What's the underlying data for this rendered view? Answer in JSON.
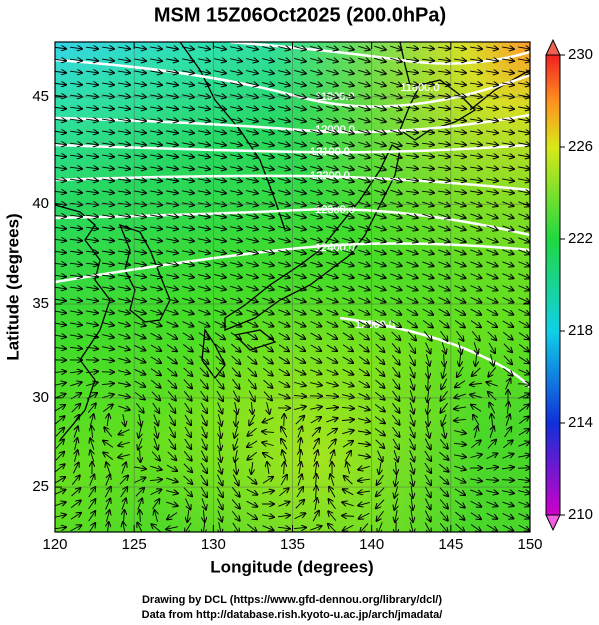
{
  "title": "MSM 15Z06Oct2025 (200.0hPa)",
  "map": {
    "xlabel": "Longitude (degrees)",
    "ylabel": "Latitude  (degrees)",
    "xlim": [
      120,
      150
    ],
    "ylim": [
      22.4,
      47.4
    ],
    "xticks": [
      120,
      125,
      130,
      135,
      140,
      145,
      150
    ],
    "yticks": [
      25,
      30,
      35,
      40,
      45
    ],
    "grid": true,
    "contour_labels": [
      "11800.0",
      "11900.0",
      "12000.0",
      "12100.0",
      "12200.0",
      "12300.0",
      "12400.0",
      "12500.0"
    ]
  },
  "colorbar": {
    "range": [
      210,
      230
    ],
    "ticks": [
      210,
      214,
      218,
      222,
      226,
      230
    ]
  },
  "footer": [
    "Drawing by DCL (https://www.gfd-dennou.org/library/dcl/)",
    "Data from http://database.rish.kyoto-u.ac.jp/arch/jmadata/"
  ]
}
